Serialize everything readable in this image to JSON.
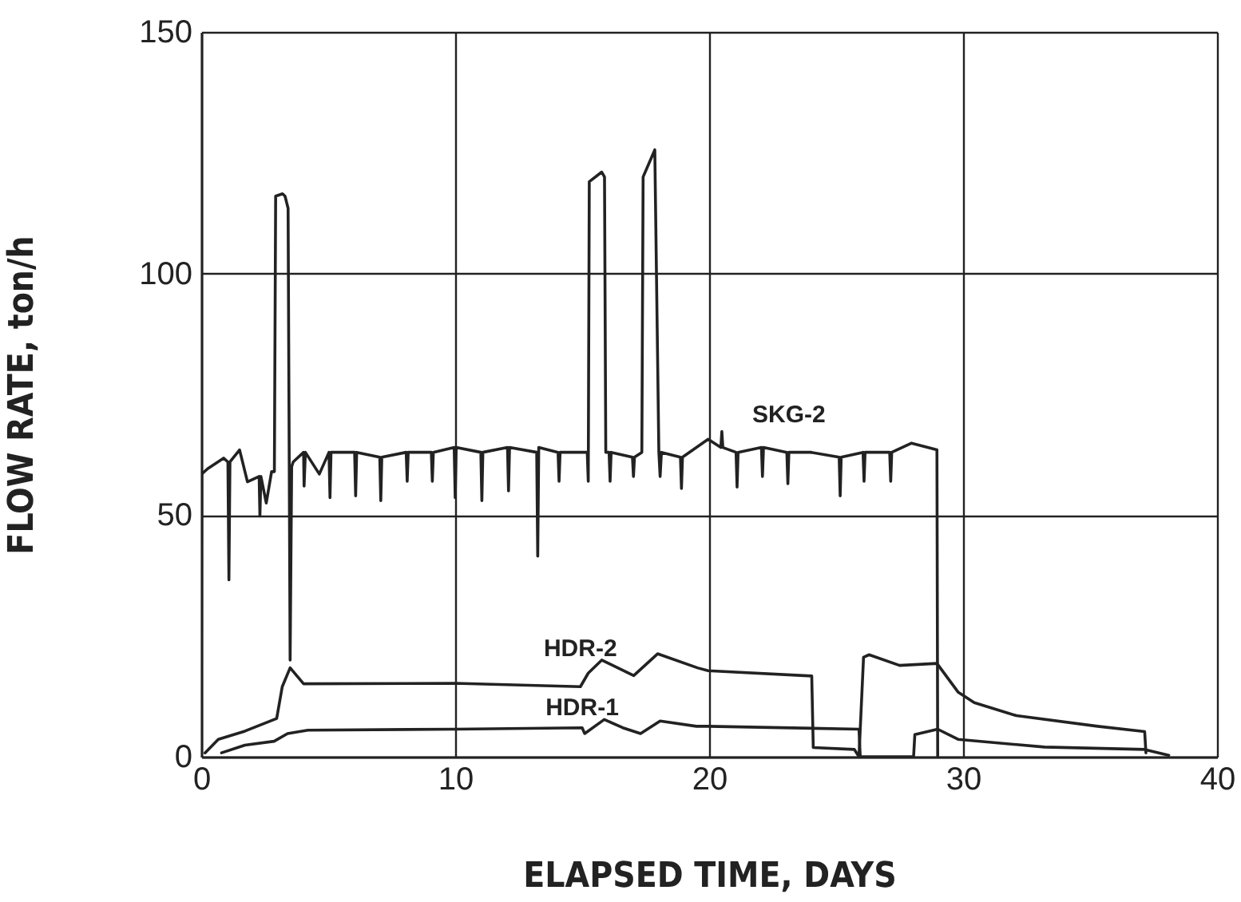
{
  "chart_data": {
    "type": "line",
    "xlabel": "ELAPSED TIME, DAYS",
    "ylabel": "FLOW RATE, ton/h",
    "xlim": [
      0,
      40
    ],
    "ylim": [
      0,
      150
    ],
    "xticks": [
      0,
      10,
      20,
      30,
      40
    ],
    "yticks": [
      0,
      50,
      100,
      150
    ],
    "grid": true,
    "legend": false,
    "marker": "none",
    "line_style": "solid",
    "series": [
      {
        "name": "SKG-2",
        "color": "#222222",
        "x": [
          0,
          0.02,
          0.25,
          0.88,
          1.05,
          1.09,
          1.13,
          1.51,
          1.82,
          2.28,
          2.31,
          2.35,
          2.56,
          2.77,
          2.88,
          2.93,
          3.2,
          3.3,
          3.42,
          3.5,
          3.56,
          3.62,
          4.03,
          4.05,
          4.1,
          4.65,
          5.03,
          5.07,
          5.11,
          6.04,
          6.08,
          6.12,
          7.03,
          7.07,
          7.11,
          8.07,
          8.11,
          8.15,
          9.06,
          9.1,
          9.14,
          9.96,
          10.0,
          10.04,
          11.01,
          11.05,
          11.09,
          12.06,
          12.1,
          12.14,
          13.21,
          13.25,
          13.29,
          14.05,
          14.09,
          14.13,
          15.2,
          15.24,
          15.28,
          15.77,
          15.88,
          15.93,
          16.06,
          16.1,
          16.14,
          16.98,
          17.02,
          17.06,
          17.35,
          17.4,
          17.86,
          18.02,
          18.07,
          18.12,
          18.87,
          18.91,
          18.95,
          19.96,
          20.46,
          20.5,
          20.54,
          21.06,
          21.1,
          21.14,
          22.06,
          22.1,
          22.14,
          23.06,
          23.1,
          23.14,
          24.0,
          25.12,
          25.16,
          25.2,
          26.06,
          26.1,
          26.14,
          27.11,
          27.15,
          27.19,
          27.97,
          28.97,
          29.0
        ],
        "values": [
          0,
          58.5,
          59.6,
          61.8,
          61,
          36.6,
          61,
          63.5,
          56.9,
          58,
          49.8,
          58,
          52.5,
          59,
          59,
          116,
          116.5,
          116,
          113.5,
          20,
          60,
          61,
          63,
          56,
          63,
          58.5,
          63,
          53.6,
          63,
          63,
          54,
          63,
          62,
          53,
          62,
          63,
          57,
          63,
          63,
          57,
          63,
          64,
          53.6,
          64,
          63,
          53,
          63,
          64,
          55,
          64,
          63,
          41.5,
          64,
          63,
          57,
          63,
          63,
          57,
          119,
          121,
          120,
          63,
          63,
          57,
          63,
          62,
          58,
          62,
          63,
          120,
          125.6,
          63,
          58,
          63,
          62,
          55.5,
          62,
          65.7,
          64,
          67.3,
          64,
          63,
          55.8,
          63,
          64,
          58,
          64,
          63,
          56.5,
          63,
          63,
          62,
          54,
          62,
          63,
          57,
          63,
          63,
          57,
          63,
          64.9,
          63.5,
          0
        ]
      },
      {
        "name": "HDR-2",
        "color": "#222222",
        "x": [
          0.15,
          0.67,
          1.72,
          2.97,
          3.19,
          3.5,
          4.03,
          10.0,
          14.93,
          15.24,
          15.77,
          17.03,
          17.97,
          19.54,
          19.96,
          24.04,
          24.1,
          25.72,
          25.9,
          26.08,
          26.3,
          27.5,
          28.97,
          29.8,
          30.44,
          32.1,
          35.3,
          37.15,
          37.2
        ],
        "values": [
          0.8,
          3.6,
          5.3,
          7.9,
          14.5,
          18.4,
          15.1,
          15.2,
          14.5,
          17.3,
          20,
          16.8,
          21.3,
          18.4,
          17.8,
          16.7,
          1.9,
          1.5,
          0,
          20.6,
          21.1,
          18.9,
          19.3,
          13.4,
          11.2,
          8.5,
          6.3,
          5.2,
          0.8
        ]
      },
      {
        "name": "HDR-1",
        "color": "#222222",
        "x": [
          0.8,
          1.72,
          2.87,
          3.4,
          4.2,
          10.0,
          15.0,
          15.1,
          15.87,
          16.6,
          17.3,
          18.07,
          19.5,
          19.96,
          25.9,
          25.95,
          28.05,
          28.1,
          29.0,
          29.8,
          33.2,
          37.15,
          38.1
        ],
        "values": [
          0.8,
          2.4,
          3.2,
          4.8,
          5.5,
          5.7,
          6.0,
          4.8,
          7.7,
          6,
          4.8,
          7.4,
          6.3,
          6.3,
          5.7,
          0,
          0,
          4.6,
          5.7,
          3.6,
          2.0,
          1.5,
          0.3
        ]
      }
    ]
  }
}
